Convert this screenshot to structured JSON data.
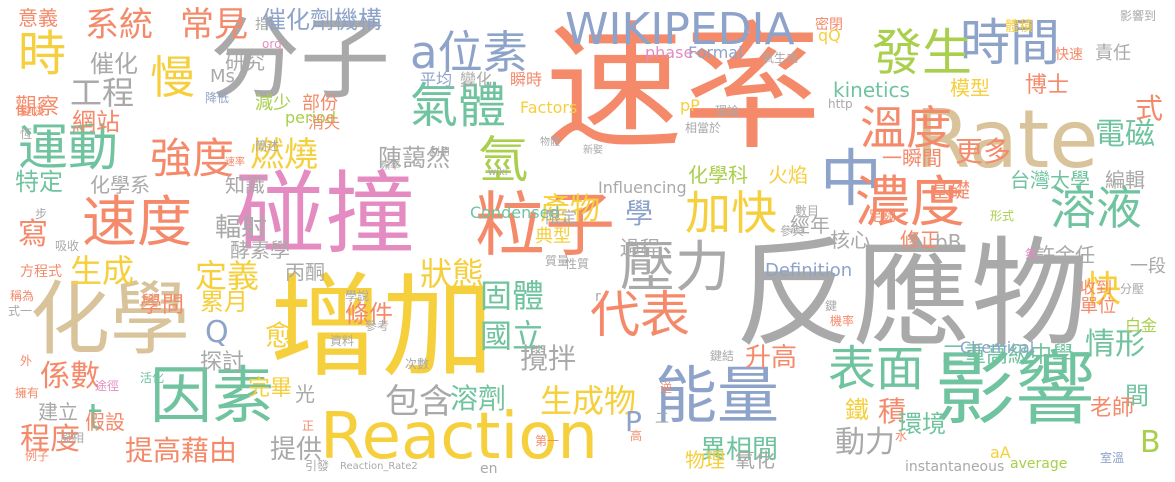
{
  "palette": {
    "orange": "#f58a6a",
    "gray": "#a9a9a9",
    "blue": "#8ea3c9",
    "pink": "#e48cc1",
    "yellow": "#f6cf3d",
    "green": "#6fc39f",
    "tan": "#d9c39a",
    "lime": "#a9cf4c"
  },
  "words": [
    {
      "text": "速率",
      "c": "orange"
    },
    {
      "text": "反應物",
      "c": "gray"
    },
    {
      "text": "增加",
      "c": "yellow"
    },
    {
      "text": "分子",
      "c": "gray"
    },
    {
      "text": "碰撞",
      "c": "pink"
    },
    {
      "text": "Rate",
      "c": "tan"
    },
    {
      "text": "影響",
      "c": "green"
    },
    {
      "text": "化學",
      "c": "tan"
    },
    {
      "text": "Reaction",
      "c": "yellow"
    },
    {
      "text": "因素",
      "c": "green"
    },
    {
      "text": "粒子",
      "c": "orange"
    },
    {
      "text": "能量",
      "c": "blue"
    },
    {
      "text": "WIKIPEDIA",
      "c": "blue"
    },
    {
      "text": "a位素",
      "c": "blue"
    },
    {
      "text": "時間",
      "c": "blue"
    },
    {
      "text": "發生",
      "c": "lime"
    },
    {
      "text": "中",
      "c": "blue"
    },
    {
      "text": "濃度",
      "c": "orange"
    },
    {
      "text": "溫度",
      "c": "orange"
    },
    {
      "text": "氣體",
      "c": "green"
    },
    {
      "text": "代表",
      "c": "orange"
    },
    {
      "text": "表面",
      "c": "green"
    },
    {
      "text": "速度",
      "c": "orange"
    },
    {
      "text": "運動",
      "c": "green"
    },
    {
      "text": "時",
      "c": "yellow"
    },
    {
      "text": "慢",
      "c": "yellow"
    },
    {
      "text": "強度",
      "c": "orange"
    },
    {
      "text": "壓力",
      "c": "gray"
    },
    {
      "text": "加快",
      "c": "yellow"
    },
    {
      "text": "溶液",
      "c": "green"
    },
    {
      "text": "氫",
      "c": "lime"
    },
    {
      "text": "燃燒",
      "c": "yellow"
    },
    {
      "text": "系統",
      "c": "orange"
    },
    {
      "text": "常見",
      "c": "orange"
    },
    {
      "text": "催化劑機構",
      "c": "blue"
    },
    {
      "text": "工程",
      "c": "gray"
    },
    {
      "text": "催化",
      "c": "gray"
    },
    {
      "text": "網站",
      "c": "orange"
    },
    {
      "text": "研究",
      "c": "gray"
    },
    {
      "text": "觀察",
      "c": "orange"
    },
    {
      "text": "更多",
      "c": "orange"
    },
    {
      "text": "電磁",
      "c": "green"
    },
    {
      "text": "式",
      "c": "orange"
    },
    {
      "text": "博士",
      "c": "orange"
    },
    {
      "text": "模型",
      "c": "yellow"
    },
    {
      "text": "kinetics",
      "c": "green"
    },
    {
      "text": "特定",
      "c": "green"
    },
    {
      "text": "化學系",
      "c": "gray"
    },
    {
      "text": "知識",
      "c": "gray"
    },
    {
      "text": "產物",
      "c": "yellow"
    },
    {
      "text": "學",
      "c": "blue"
    },
    {
      "text": "寫",
      "c": "orange"
    },
    {
      "text": "生成",
      "c": "yellow"
    },
    {
      "text": "定義",
      "c": "yellow"
    },
    {
      "text": "狀態",
      "c": "yellow"
    },
    {
      "text": "固體",
      "c": "green"
    },
    {
      "text": "國立",
      "c": "green"
    },
    {
      "text": "快",
      "c": "yellow"
    },
    {
      "text": "情形",
      "c": "green"
    },
    {
      "text": "輻射",
      "c": "gray"
    },
    {
      "text": "酵素學",
      "c": "gray"
    },
    {
      "text": "學問",
      "c": "orange"
    },
    {
      "text": "條件",
      "c": "orange"
    },
    {
      "text": "丙酮",
      "c": "gray"
    },
    {
      "text": "累月",
      "c": "yellow"
    },
    {
      "text": "Q",
      "c": "blue"
    },
    {
      "text": "愈",
      "c": "yellow"
    },
    {
      "text": "係數",
      "c": "orange"
    },
    {
      "text": "t",
      "c": "green"
    },
    {
      "text": "探討",
      "c": "gray"
    },
    {
      "text": "完畢",
      "c": "yellow"
    },
    {
      "text": "光",
      "c": "gray"
    },
    {
      "text": "包含",
      "c": "gray"
    },
    {
      "text": "溶劑",
      "c": "green"
    },
    {
      "text": "生成物",
      "c": "yellow"
    },
    {
      "text": "攪拌",
      "c": "gray"
    },
    {
      "text": "升高",
      "c": "orange"
    },
    {
      "text": "三重高級中學",
      "c": "green"
    },
    {
      "text": "間",
      "c": "green"
    },
    {
      "text": "P",
      "c": "blue"
    },
    {
      "text": "動力",
      "c": "gray"
    },
    {
      "text": "積",
      "c": "orange"
    },
    {
      "text": "鐵",
      "c": "yellow"
    },
    {
      "text": "環境",
      "c": "green"
    },
    {
      "text": "老師",
      "c": "orange"
    },
    {
      "text": "B",
      "c": "lime"
    },
    {
      "text": "程度",
      "c": "orange"
    },
    {
      "text": "提高藉由",
      "c": "orange"
    },
    {
      "text": "提供",
      "c": "gray"
    },
    {
      "text": "異相間",
      "c": "green"
    },
    {
      "text": "物理",
      "c": "yellow"
    },
    {
      "text": "氧化",
      "c": "gray"
    },
    {
      "text": "建立",
      "c": "gray"
    },
    {
      "text": "假設",
      "c": "orange"
    },
    {
      "text": "一瞬間",
      "c": "orange"
    },
    {
      "text": "基礎",
      "c": "orange"
    },
    {
      "text": "台灣大學",
      "c": "green"
    },
    {
      "text": "編輯",
      "c": "gray"
    },
    {
      "text": "化學科",
      "c": "lime"
    },
    {
      "text": "火焰",
      "c": "yellow"
    },
    {
      "text": "經年",
      "c": "gray"
    },
    {
      "text": "核心",
      "c": "gray"
    },
    {
      "text": "修正",
      "c": "orange"
    },
    {
      "text": "bB",
      "c": "gray"
    },
    {
      "text": "許余任",
      "c": "gray"
    },
    {
      "text": "一段",
      "c": "gray"
    },
    {
      "text": "單位",
      "c": "orange"
    },
    {
      "text": "收到",
      "c": "orange"
    },
    {
      "text": "白金",
      "c": "lime"
    },
    {
      "text": "過程",
      "c": "gray"
    },
    {
      "text": "典型",
      "c": "yellow"
    },
    {
      "text": "Definition",
      "c": "blue"
    },
    {
      "text": "Chemical",
      "c": "blue"
    },
    {
      "text": "Condensed",
      "c": "green"
    },
    {
      "text": "Influencing",
      "c": "gray"
    },
    {
      "text": "Factors",
      "c": "yellow"
    },
    {
      "text": "Formal",
      "c": "blue"
    },
    {
      "text": "phase",
      "c": "pink"
    },
    {
      "text": "period",
      "c": "lime"
    },
    {
      "text": "average",
      "c": "lime"
    },
    {
      "text": "instantaneous",
      "c": "gray"
    },
    {
      "text": "Reaction_Rate2",
      "c": "gray"
    },
    {
      "text": "http",
      "c": "gray"
    },
    {
      "text": "wiki",
      "c": "gray"
    },
    {
      "text": "Ms",
      "c": "gray"
    },
    {
      "text": "org",
      "c": "pink"
    },
    {
      "text": "en",
      "c": "gray"
    },
    {
      "text": "qQ",
      "c": "yellow"
    },
    {
      "text": "pP",
      "c": "yellow"
    },
    {
      "text": "aA",
      "c": "yellow"
    },
    {
      "text": "意義",
      "c": "orange"
    },
    {
      "text": "速率",
      "c": "orange"
    },
    {
      "text": "變快",
      "c": "orange"
    },
    {
      "text": "降低",
      "c": "blue"
    },
    {
      "text": "簡述",
      "c": "gray"
    },
    {
      "text": "陳藹然",
      "c": "gray"
    },
    {
      "text": "減少",
      "c": "lime"
    },
    {
      "text": "部份",
      "c": "orange"
    },
    {
      "text": "消失",
      "c": "orange"
    },
    {
      "text": "平均",
      "c": "blue"
    },
    {
      "text": "變化",
      "c": "gray"
    },
    {
      "text": "瞬時",
      "c": "orange"
    },
    {
      "text": "密閉",
      "c": "orange"
    },
    {
      "text": "體積",
      "c": "yellow"
    },
    {
      "text": "快速",
      "c": "orange"
    },
    {
      "text": "責任",
      "c": "gray"
    },
    {
      "text": "影響到",
      "c": "gray"
    },
    {
      "text": "氧生成",
      "c": "gray"
    },
    {
      "text": "理論",
      "c": "gray"
    },
    {
      "text": "相當於",
      "c": "gray"
    },
    {
      "text": "新娶",
      "c": "gray"
    },
    {
      "text": "利用",
      "c": "gray"
    },
    {
      "text": "頻率",
      "c": "gray"
    },
    {
      "text": "物體",
      "c": "gray"
    },
    {
      "text": "步",
      "c": "gray"
    },
    {
      "text": "方程式",
      "c": "orange"
    },
    {
      "text": "稱為",
      "c": "orange"
    },
    {
      "text": "式一",
      "c": "gray"
    },
    {
      "text": "吸收",
      "c": "gray"
    },
    {
      "text": "外",
      "c": "orange"
    },
    {
      "text": "擁有",
      "c": "orange"
    },
    {
      "text": "例子",
      "c": "orange"
    },
    {
      "text": "凝相",
      "c": "gray"
    },
    {
      "text": "途徑",
      "c": "pink"
    },
    {
      "text": "活化",
      "c": "green"
    },
    {
      "text": "正",
      "c": "orange"
    },
    {
      "text": "引發",
      "c": "gray"
    },
    {
      "text": "學說",
      "c": "gray"
    },
    {
      "text": "參考",
      "c": "gray"
    },
    {
      "text": "次數",
      "c": "gray"
    },
    {
      "text": "逆",
      "c": "orange"
    },
    {
      "text": "二",
      "c": "gray"
    },
    {
      "text": "第一",
      "c": "orange"
    },
    {
      "text": "高",
      "c": "orange"
    },
    {
      "text": "鍵結",
      "c": "gray"
    },
    {
      "text": "水",
      "c": "orange"
    },
    {
      "text": "參與",
      "c": "gray"
    },
    {
      "text": "數目",
      "c": "gray"
    },
    {
      "text": "足夠",
      "c": "orange"
    },
    {
      "text": "形式",
      "c": "lime"
    },
    {
      "text": "氣",
      "c": "pink"
    },
    {
      "text": "分壓",
      "c": "gray"
    },
    {
      "text": "鍵",
      "c": "gray"
    },
    {
      "text": "機率",
      "c": "orange"
    },
    {
      "text": "室溫",
      "c": "blue"
    },
    {
      "text": "質量",
      "c": "gray"
    },
    {
      "text": "性質",
      "c": "gray"
    },
    {
      "text": "資料",
      "c": "gray"
    },
    {
      "text": "r",
      "c": "gray"
    },
    {
      "text": "指",
      "c": "gray"
    },
    {
      "text": "恆",
      "c": "gray"
    },
    {
      "text": "限定",
      "c": "gray"
    },
    {
      "text": "產生",
      "c": "yellow"
    }
  ]
}
